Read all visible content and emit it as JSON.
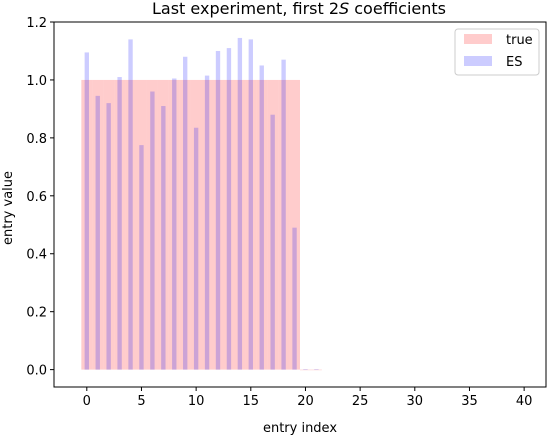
{
  "chart_data": {
    "type": "bar",
    "title_prefix": "Last experiment, first 2",
    "title_var": "S",
    "title_suffix": " coefficients",
    "xlabel": "entry index",
    "ylabel": "entry value",
    "xlim": [
      -3,
      42
    ],
    "ylim": [
      -0.06,
      1.2
    ],
    "xticks": [
      0,
      5,
      10,
      15,
      20,
      25,
      30,
      35,
      40
    ],
    "yticks": [
      0.0,
      0.2,
      0.4,
      0.6,
      0.8,
      1.0,
      1.2
    ],
    "legend_position": "top-right",
    "series": [
      {
        "name": "true",
        "color": "#ff0000",
        "alpha": 0.2,
        "bar_width": 1.0,
        "x": [
          0,
          1,
          2,
          3,
          4,
          5,
          6,
          7,
          8,
          9,
          10,
          11,
          12,
          13,
          14,
          15,
          16,
          17,
          18,
          19,
          20,
          21
        ],
        "values": [
          1,
          1,
          1,
          1,
          1,
          1,
          1,
          1,
          1,
          1,
          1,
          1,
          1,
          1,
          1,
          1,
          1,
          1,
          1,
          1,
          0,
          0
        ]
      },
      {
        "name": "ES",
        "color": "#0000ff",
        "alpha": 0.2,
        "bar_width": 0.4,
        "x": [
          0,
          1,
          2,
          3,
          4,
          5,
          6,
          7,
          8,
          9,
          10,
          11,
          12,
          13,
          14,
          15,
          16,
          17,
          18,
          19,
          20,
          21
        ],
        "values": [
          1.095,
          0.945,
          0.92,
          1.01,
          1.14,
          0.775,
          0.96,
          0.91,
          1.005,
          1.08,
          0.835,
          1.015,
          1.1,
          1.11,
          1.145,
          1.14,
          1.05,
          0.88,
          1.07,
          0.49,
          0.002,
          0.002
        ]
      }
    ]
  }
}
